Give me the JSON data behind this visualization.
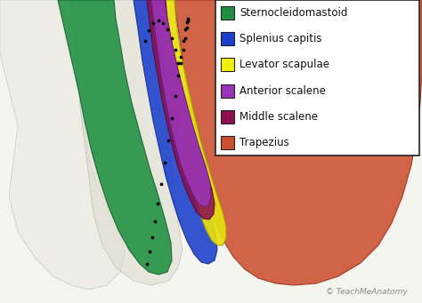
{
  "legend_entries": [
    {
      "label": "Sternocleidomastoid",
      "color": "#1e9040"
    },
    {
      "label": "Splenius capitis",
      "color": "#1a3fcc"
    },
    {
      "label": "Levator scapulae",
      "color": "#f0f000"
    },
    {
      "label": "Anterior scalene",
      "color": "#9b35b8"
    },
    {
      "label": "Middle scalene",
      "color": "#8b1050"
    },
    {
      "label": "Trapezius",
      "color": "#cc5030"
    }
  ],
  "watermark": "© TeachMeAnatomy",
  "bg_color": "#f5f5f0",
  "legend_bg": "#ffffff",
  "legend_edge": "#222222",
  "legend_fontsize": 8.5,
  "watermark_fontsize": 6.5
}
